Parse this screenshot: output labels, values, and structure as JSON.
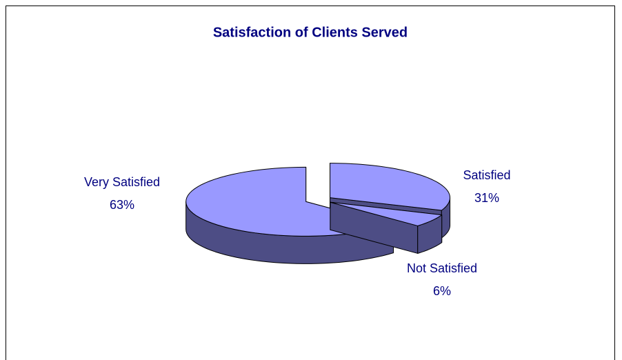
{
  "chart_data": {
    "type": "pie3d",
    "title": "Satisfaction of Clients Served",
    "categories": [
      "Very Satisfied",
      "Satisfied",
      "Not Satisfied"
    ],
    "values": [
      63,
      31,
      6
    ],
    "value_labels": [
      "63%",
      "31%",
      "6%"
    ],
    "color": "#9999ff",
    "side_color": "#4d4d85",
    "text_color": "#000080"
  }
}
